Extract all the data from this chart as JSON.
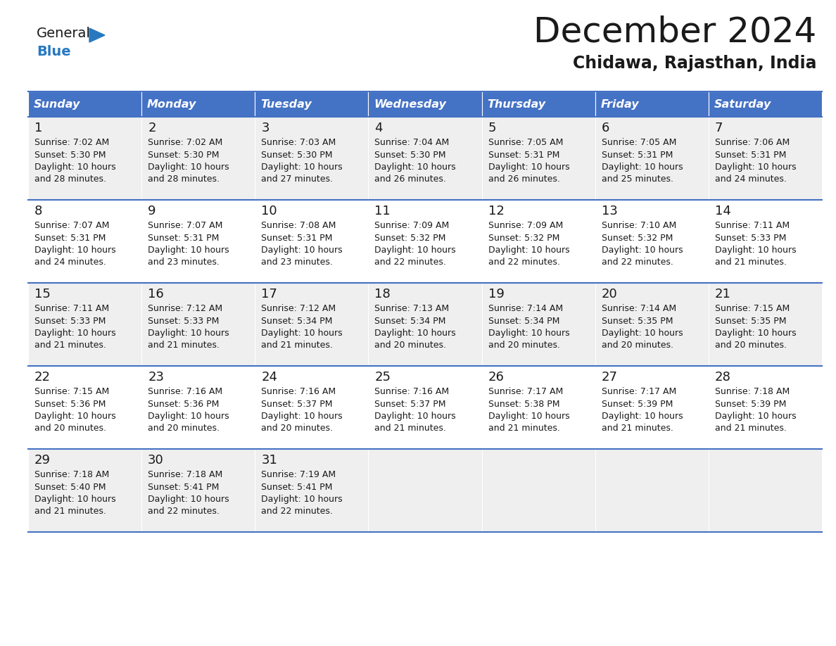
{
  "title": "December 2024",
  "subtitle": "Chidawa, Rajasthan, India",
  "header_color": "#4472C4",
  "header_text_color": "#FFFFFF",
  "bg_color": "#FFFFFF",
  "cell_bg_odd": "#EFEFEF",
  "cell_bg_even": "#FFFFFF",
  "days_of_week": [
    "Sunday",
    "Monday",
    "Tuesday",
    "Wednesday",
    "Thursday",
    "Friday",
    "Saturday"
  ],
  "calendar_data": [
    [
      {
        "day": "1",
        "sunrise": "7:02 AM",
        "sunset": "5:30 PM",
        "daylight_l1": "Daylight: 10 hours",
        "daylight_l2": "and 28 minutes."
      },
      {
        "day": "2",
        "sunrise": "7:02 AM",
        "sunset": "5:30 PM",
        "daylight_l1": "Daylight: 10 hours",
        "daylight_l2": "and 28 minutes."
      },
      {
        "day": "3",
        "sunrise": "7:03 AM",
        "sunset": "5:30 PM",
        "daylight_l1": "Daylight: 10 hours",
        "daylight_l2": "and 27 minutes."
      },
      {
        "day": "4",
        "sunrise": "7:04 AM",
        "sunset": "5:30 PM",
        "daylight_l1": "Daylight: 10 hours",
        "daylight_l2": "and 26 minutes."
      },
      {
        "day": "5",
        "sunrise": "7:05 AM",
        "sunset": "5:31 PM",
        "daylight_l1": "Daylight: 10 hours",
        "daylight_l2": "and 26 minutes."
      },
      {
        "day": "6",
        "sunrise": "7:05 AM",
        "sunset": "5:31 PM",
        "daylight_l1": "Daylight: 10 hours",
        "daylight_l2": "and 25 minutes."
      },
      {
        "day": "7",
        "sunrise": "7:06 AM",
        "sunset": "5:31 PM",
        "daylight_l1": "Daylight: 10 hours",
        "daylight_l2": "and 24 minutes."
      }
    ],
    [
      {
        "day": "8",
        "sunrise": "7:07 AM",
        "sunset": "5:31 PM",
        "daylight_l1": "Daylight: 10 hours",
        "daylight_l2": "and 24 minutes."
      },
      {
        "day": "9",
        "sunrise": "7:07 AM",
        "sunset": "5:31 PM",
        "daylight_l1": "Daylight: 10 hours",
        "daylight_l2": "and 23 minutes."
      },
      {
        "day": "10",
        "sunrise": "7:08 AM",
        "sunset": "5:31 PM",
        "daylight_l1": "Daylight: 10 hours",
        "daylight_l2": "and 23 minutes."
      },
      {
        "day": "11",
        "sunrise": "7:09 AM",
        "sunset": "5:32 PM",
        "daylight_l1": "Daylight: 10 hours",
        "daylight_l2": "and 22 minutes."
      },
      {
        "day": "12",
        "sunrise": "7:09 AM",
        "sunset": "5:32 PM",
        "daylight_l1": "Daylight: 10 hours",
        "daylight_l2": "and 22 minutes."
      },
      {
        "day": "13",
        "sunrise": "7:10 AM",
        "sunset": "5:32 PM",
        "daylight_l1": "Daylight: 10 hours",
        "daylight_l2": "and 22 minutes."
      },
      {
        "day": "14",
        "sunrise": "7:11 AM",
        "sunset": "5:33 PM",
        "daylight_l1": "Daylight: 10 hours",
        "daylight_l2": "and 21 minutes."
      }
    ],
    [
      {
        "day": "15",
        "sunrise": "7:11 AM",
        "sunset": "5:33 PM",
        "daylight_l1": "Daylight: 10 hours",
        "daylight_l2": "and 21 minutes."
      },
      {
        "day": "16",
        "sunrise": "7:12 AM",
        "sunset": "5:33 PM",
        "daylight_l1": "Daylight: 10 hours",
        "daylight_l2": "and 21 minutes."
      },
      {
        "day": "17",
        "sunrise": "7:12 AM",
        "sunset": "5:34 PM",
        "daylight_l1": "Daylight: 10 hours",
        "daylight_l2": "and 21 minutes."
      },
      {
        "day": "18",
        "sunrise": "7:13 AM",
        "sunset": "5:34 PM",
        "daylight_l1": "Daylight: 10 hours",
        "daylight_l2": "and 20 minutes."
      },
      {
        "day": "19",
        "sunrise": "7:14 AM",
        "sunset": "5:34 PM",
        "daylight_l1": "Daylight: 10 hours",
        "daylight_l2": "and 20 minutes."
      },
      {
        "day": "20",
        "sunrise": "7:14 AM",
        "sunset": "5:35 PM",
        "daylight_l1": "Daylight: 10 hours",
        "daylight_l2": "and 20 minutes."
      },
      {
        "day": "21",
        "sunrise": "7:15 AM",
        "sunset": "5:35 PM",
        "daylight_l1": "Daylight: 10 hours",
        "daylight_l2": "and 20 minutes."
      }
    ],
    [
      {
        "day": "22",
        "sunrise": "7:15 AM",
        "sunset": "5:36 PM",
        "daylight_l1": "Daylight: 10 hours",
        "daylight_l2": "and 20 minutes."
      },
      {
        "day": "23",
        "sunrise": "7:16 AM",
        "sunset": "5:36 PM",
        "daylight_l1": "Daylight: 10 hours",
        "daylight_l2": "and 20 minutes."
      },
      {
        "day": "24",
        "sunrise": "7:16 AM",
        "sunset": "5:37 PM",
        "daylight_l1": "Daylight: 10 hours",
        "daylight_l2": "and 20 minutes."
      },
      {
        "day": "25",
        "sunrise": "7:16 AM",
        "sunset": "5:37 PM",
        "daylight_l1": "Daylight: 10 hours",
        "daylight_l2": "and 21 minutes."
      },
      {
        "day": "26",
        "sunrise": "7:17 AM",
        "sunset": "5:38 PM",
        "daylight_l1": "Daylight: 10 hours",
        "daylight_l2": "and 21 minutes."
      },
      {
        "day": "27",
        "sunrise": "7:17 AM",
        "sunset": "5:39 PM",
        "daylight_l1": "Daylight: 10 hours",
        "daylight_l2": "and 21 minutes."
      },
      {
        "day": "28",
        "sunrise": "7:18 AM",
        "sunset": "5:39 PM",
        "daylight_l1": "Daylight: 10 hours",
        "daylight_l2": "and 21 minutes."
      }
    ],
    [
      {
        "day": "29",
        "sunrise": "7:18 AM",
        "sunset": "5:40 PM",
        "daylight_l1": "Daylight: 10 hours",
        "daylight_l2": "and 21 minutes."
      },
      {
        "day": "30",
        "sunrise": "7:18 AM",
        "sunset": "5:41 PM",
        "daylight_l1": "Daylight: 10 hours",
        "daylight_l2": "and 22 minutes."
      },
      {
        "day": "31",
        "sunrise": "7:19 AM",
        "sunset": "5:41 PM",
        "daylight_l1": "Daylight: 10 hours",
        "daylight_l2": "and 22 minutes."
      },
      null,
      null,
      null,
      null
    ]
  ],
  "logo_text_general": "General",
  "logo_text_blue": "Blue",
  "logo_color_general": "#1a1a1a",
  "logo_color_blue": "#2878C0",
  "logo_triangle_color": "#2878C0"
}
